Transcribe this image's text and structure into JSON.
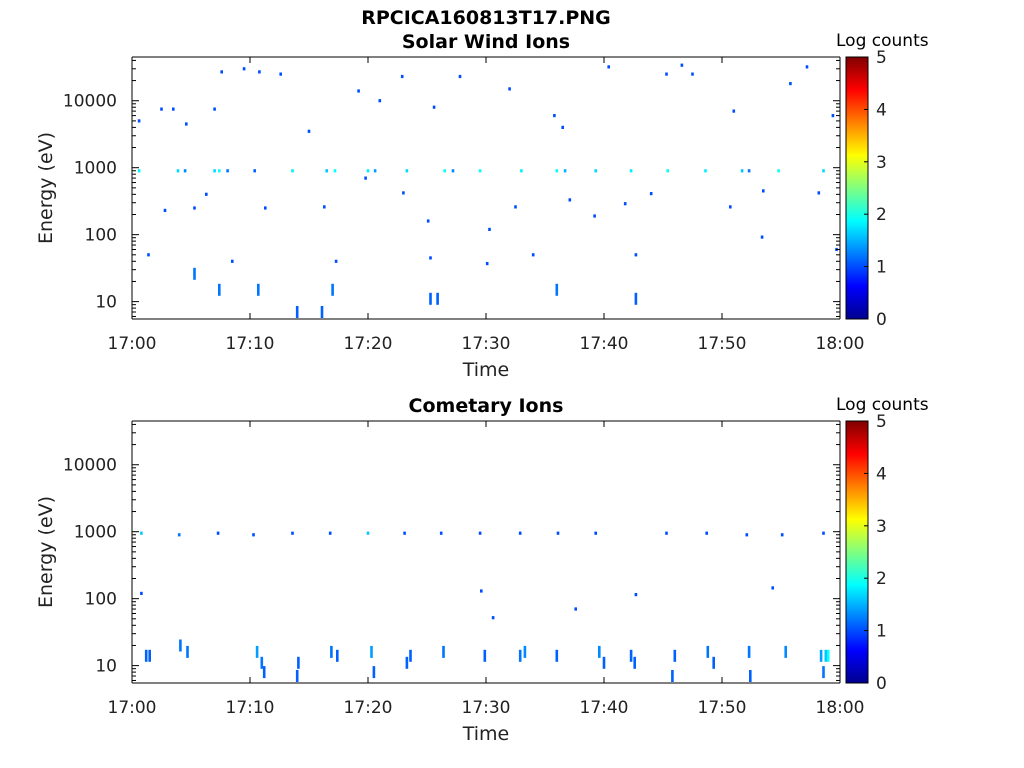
{
  "figure": {
    "title": "RPCICA160813T17.PNG"
  },
  "chart_data": [
    {
      "type": "heatmap",
      "title": "Solar Wind Ions",
      "xlabel": "Time",
      "ylabel": "Energy (eV)",
      "x_ticks": [
        "17:00",
        "17:10",
        "17:20",
        "17:30",
        "17:40",
        "17:50",
        "18:00"
      ],
      "x_range_minutes": [
        0,
        60
      ],
      "y_scale": "log",
      "y_range": [
        5.5,
        45000
      ],
      "y_ticks": [
        {
          "value": 10,
          "label": "10"
        },
        {
          "value": 100,
          "label": "100"
        },
        {
          "value": 1000,
          "label": "1000"
        },
        {
          "value": 10000,
          "label": "10000"
        }
      ],
      "colorbar": {
        "label": "Log counts",
        "range": [
          0,
          5
        ],
        "ticks": [
          "0",
          "1",
          "2",
          "3",
          "4",
          "5"
        ],
        "colormap": "jet"
      },
      "background": "#ffffff",
      "points": [
        [
          0.6,
          900,
          1.8
        ],
        [
          3.9,
          900,
          1.7
        ],
        [
          4.5,
          900,
          1.3
        ],
        [
          7.0,
          900,
          1.7
        ],
        [
          7.4,
          900,
          1.9
        ],
        [
          8.1,
          900,
          1.2
        ],
        [
          10.4,
          900,
          1.1
        ],
        [
          13.6,
          900,
          1.8
        ],
        [
          16.5,
          900,
          1.6
        ],
        [
          17.2,
          900,
          1.9
        ],
        [
          20.0,
          900,
          1.8
        ],
        [
          20.6,
          900,
          1.4
        ],
        [
          23.3,
          900,
          1.7
        ],
        [
          26.5,
          900,
          1.9
        ],
        [
          27.2,
          900,
          1.3
        ],
        [
          29.5,
          900,
          1.9
        ],
        [
          33.0,
          900,
          1.8
        ],
        [
          36.0,
          900,
          1.9
        ],
        [
          36.7,
          900,
          1.5
        ],
        [
          39.3,
          900,
          1.7
        ],
        [
          42.3,
          900,
          1.8
        ],
        [
          45.4,
          900,
          1.9
        ],
        [
          48.6,
          900,
          1.8
        ],
        [
          51.7,
          900,
          1.6
        ],
        [
          52.3,
          900,
          1.2
        ],
        [
          54.8,
          900,
          1.9
        ],
        [
          58.6,
          900,
          1.7
        ],
        [
          0.6,
          5000,
          1.0
        ],
        [
          2.5,
          7500,
          1.0
        ],
        [
          3.5,
          7500,
          1.0
        ],
        [
          4.6,
          4500,
          1.0
        ],
        [
          7.0,
          7500,
          1.0
        ],
        [
          7.6,
          27000,
          1.0
        ],
        [
          9.5,
          30000,
          1.0
        ],
        [
          10.8,
          27000,
          1.0
        ],
        [
          12.6,
          25000,
          1.0
        ],
        [
          15.0,
          3500,
          1.0
        ],
        [
          19.2,
          14000,
          1.0
        ],
        [
          21.0,
          10000,
          1.0
        ],
        [
          22.9,
          23000,
          1.0
        ],
        [
          25.6,
          8000,
          1.0
        ],
        [
          27.8,
          23000,
          1.0
        ],
        [
          32.0,
          15000,
          1.0
        ],
        [
          35.8,
          6000,
          1.0
        ],
        [
          36.5,
          4000,
          1.0
        ],
        [
          40.4,
          32000,
          1.0
        ],
        [
          45.3,
          25000,
          1.0
        ],
        [
          46.6,
          34000,
          1.0
        ],
        [
          47.5,
          25000,
          1.0
        ],
        [
          51.0,
          7000,
          1.0
        ],
        [
          55.8,
          18000,
          1.0
        ],
        [
          57.2,
          32000,
          1.0
        ],
        [
          59.4,
          6000,
          1.0
        ],
        [
          2.8,
          230,
          1.0
        ],
        [
          5.3,
          250,
          1.0
        ],
        [
          6.3,
          400,
          1.0
        ],
        [
          11.3,
          250,
          1.0
        ],
        [
          16.3,
          260,
          1.0
        ],
        [
          19.8,
          700,
          1.0
        ],
        [
          23.0,
          420,
          1.0
        ],
        [
          25.1,
          160,
          1.0
        ],
        [
          30.3,
          120,
          1.0
        ],
        [
          32.5,
          260,
          1.0
        ],
        [
          37.1,
          330,
          1.0
        ],
        [
          39.2,
          190,
          1.0
        ],
        [
          41.8,
          290,
          1.0
        ],
        [
          44.0,
          410,
          1.0
        ],
        [
          50.7,
          260,
          1.0
        ],
        [
          53.5,
          450,
          1.0
        ],
        [
          58.2,
          420,
          1.0
        ],
        [
          59.7,
          60,
          1.0
        ],
        [
          1.4,
          50,
          1.0
        ],
        [
          8.5,
          40,
          1.0
        ],
        [
          17.3,
          40,
          1.0
        ],
        [
          25.3,
          45,
          1.0
        ],
        [
          30.1,
          37,
          1.0
        ],
        [
          34.0,
          50,
          1.0
        ],
        [
          42.7,
          50,
          1.0
        ],
        [
          53.4,
          92,
          1.0
        ],
        [
          5.3,
          26,
          1.2
        ],
        [
          7.4,
          15,
          1.2
        ],
        [
          10.7,
          15,
          1.2
        ],
        [
          17.0,
          15,
          1.2
        ],
        [
          25.3,
          11,
          1.1
        ],
        [
          25.9,
          11,
          1.1
        ],
        [
          36.0,
          15,
          1.2
        ],
        [
          42.7,
          11,
          1.1
        ],
        [
          14.0,
          7,
          1.1
        ],
        [
          16.1,
          7,
          1.1
        ]
      ]
    },
    {
      "type": "heatmap",
      "title": "Cometary Ions",
      "xlabel": "Time",
      "ylabel": "Energy (eV)",
      "x_ticks": [
        "17:00",
        "17:10",
        "17:20",
        "17:30",
        "17:40",
        "17:50",
        "18:00"
      ],
      "x_range_minutes": [
        0,
        60
      ],
      "y_scale": "log",
      "y_range": [
        5.5,
        45000
      ],
      "y_ticks": [
        {
          "value": 10,
          "label": "10"
        },
        {
          "value": 100,
          "label": "100"
        },
        {
          "value": 1000,
          "label": "1000"
        },
        {
          "value": 10000,
          "label": "10000"
        }
      ],
      "colorbar": {
        "label": "Log counts",
        "range": [
          0,
          5
        ],
        "ticks": [
          "0",
          "1",
          "2",
          "3",
          "4",
          "5"
        ],
        "colormap": "jet"
      },
      "background": "#ffffff",
      "points": [
        [
          0.8,
          950,
          1.6
        ],
        [
          4.0,
          900,
          1.2
        ],
        [
          7.3,
          950,
          1.0
        ],
        [
          10.3,
          900,
          1.0
        ],
        [
          13.6,
          950,
          1.0
        ],
        [
          16.8,
          950,
          1.0
        ],
        [
          20.0,
          950,
          1.6
        ],
        [
          23.1,
          950,
          1.0
        ],
        [
          26.2,
          950,
          1.0
        ],
        [
          29.5,
          950,
          1.0
        ],
        [
          32.9,
          950,
          1.0
        ],
        [
          36.1,
          950,
          1.0
        ],
        [
          39.3,
          950,
          1.0
        ],
        [
          45.3,
          950,
          1.0
        ],
        [
          48.7,
          950,
          1.0
        ],
        [
          52.1,
          900,
          1.0
        ],
        [
          55.1,
          900,
          1.0
        ],
        [
          58.6,
          950,
          1.0
        ],
        [
          0.8,
          120,
          1.0
        ],
        [
          29.6,
          130,
          1.0
        ],
        [
          30.6,
          52,
          1.0
        ],
        [
          37.6,
          70,
          1.0
        ],
        [
          42.7,
          115,
          1.0
        ],
        [
          54.3,
          145,
          1.0
        ],
        [
          1.2,
          14,
          1.1
        ],
        [
          1.5,
          14,
          1.1
        ],
        [
          4.1,
          20,
          1.2
        ],
        [
          4.7,
          16,
          1.2
        ],
        [
          10.6,
          16,
          1.4
        ],
        [
          11.0,
          11,
          1.2
        ],
        [
          11.2,
          8,
          1.1
        ],
        [
          14.1,
          11,
          1.1
        ],
        [
          14.0,
          7,
          1.1
        ],
        [
          16.9,
          16,
          1.2
        ],
        [
          17.4,
          14,
          1.1
        ],
        [
          20.3,
          16,
          1.4
        ],
        [
          20.5,
          8,
          1.1
        ],
        [
          23.3,
          11,
          1.1
        ],
        [
          23.6,
          14,
          1.1
        ],
        [
          26.4,
          16,
          1.2
        ],
        [
          29.9,
          14,
          1.1
        ],
        [
          32.9,
          14,
          1.2
        ],
        [
          33.3,
          16,
          1.3
        ],
        [
          36.0,
          14,
          1.1
        ],
        [
          39.6,
          16,
          1.3
        ],
        [
          40.0,
          11,
          1.1
        ],
        [
          42.3,
          14,
          1.1
        ],
        [
          42.6,
          11,
          1.1
        ],
        [
          45.8,
          7,
          1.1
        ],
        [
          46.0,
          14,
          1.1
        ],
        [
          48.8,
          16,
          1.2
        ],
        [
          49.3,
          11,
          1.1
        ],
        [
          52.3,
          16,
          1.2
        ],
        [
          52.4,
          7,
          1.1
        ],
        [
          55.4,
          16,
          1.3
        ],
        [
          58.4,
          14,
          1.4
        ],
        [
          58.8,
          14,
          1.6
        ],
        [
          59.0,
          14,
          1.9
        ],
        [
          58.6,
          8,
          1.2
        ]
      ]
    }
  ]
}
